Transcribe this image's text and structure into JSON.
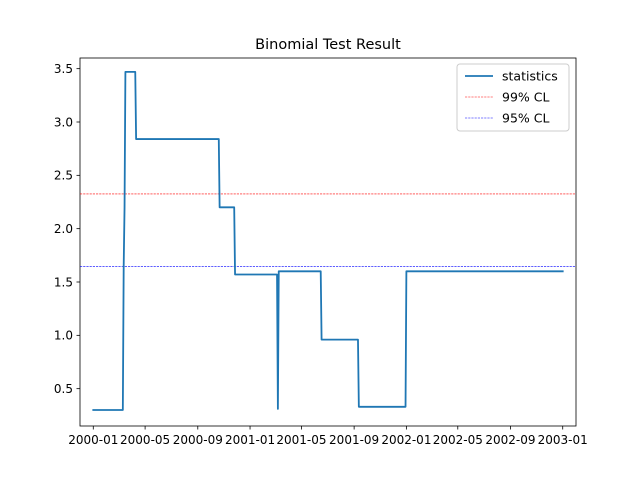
{
  "chart_data": {
    "type": "line",
    "title": "Binomial Test Result",
    "xlabel": "",
    "ylabel": "",
    "x_type": "date",
    "xlim": [
      "1999-12-01",
      "2003-02-01"
    ],
    "ylim": [
      0.15,
      3.6
    ],
    "x_ticks": [
      "2000-01",
      "2000-05",
      "2000-09",
      "2001-01",
      "2001-05",
      "2001-09",
      "2002-01",
      "2002-05",
      "2002-09",
      "2003-01"
    ],
    "y_ticks": [
      "0.5",
      "1.0",
      "1.5",
      "2.0",
      "2.5",
      "3.0",
      "3.5"
    ],
    "legend_position": "upper right",
    "grid": false,
    "series": [
      {
        "name": "statistics",
        "color": "#1f77b4",
        "style": "solid",
        "points": [
          [
            "2000-01-01",
            0.3
          ],
          [
            "2000-03-10",
            0.3
          ],
          [
            "2000-03-12",
            1.65
          ],
          [
            "2000-03-14",
            2.2
          ],
          [
            "2000-03-16",
            3.47
          ],
          [
            "2000-04-08",
            3.47
          ],
          [
            "2000-04-10",
            2.84
          ],
          [
            "2000-10-20",
            2.84
          ],
          [
            "2000-10-22",
            2.2
          ],
          [
            "2000-11-25",
            2.2
          ],
          [
            "2000-11-27",
            1.57
          ],
          [
            "2001-03-05",
            1.57
          ],
          [
            "2001-03-07",
            0.31
          ],
          [
            "2001-03-09",
            1.6
          ],
          [
            "2001-06-15",
            1.6
          ],
          [
            "2001-06-17",
            0.96
          ],
          [
            "2001-09-10",
            0.96
          ],
          [
            "2001-09-12",
            0.33
          ],
          [
            "2001-12-30",
            0.33
          ],
          [
            "2002-01-01",
            1.6
          ],
          [
            "2003-01-01",
            1.6
          ]
        ]
      },
      {
        "name": "99% CL",
        "color": "#ff0000",
        "style": "dashed",
        "constant": 2.326
      },
      {
        "name": "95% CL",
        "color": "#0000ff",
        "style": "dashed",
        "constant": 1.645
      }
    ]
  }
}
